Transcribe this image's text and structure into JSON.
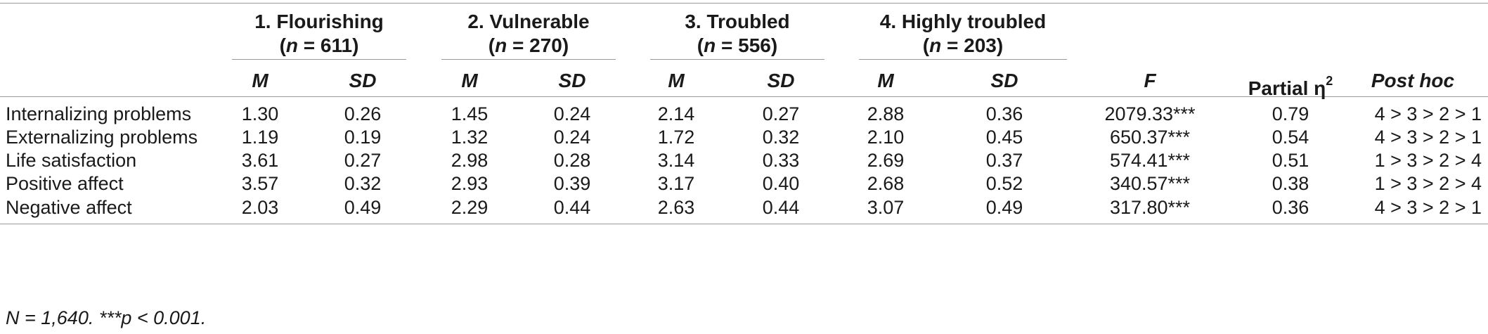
{
  "groups": [
    {
      "title": "1. Flourishing",
      "n_prefix": "(",
      "n_var": "n",
      "n_eq": " = 611)"
    },
    {
      "title": "2. Vulnerable",
      "n_prefix": "(",
      "n_var": "n",
      "n_eq": " = 270)"
    },
    {
      "title": "3. Troubled",
      "n_prefix": "(",
      "n_var": "n",
      "n_eq": " = 556)"
    },
    {
      "title": "4. Highly troubled",
      "n_prefix": "(",
      "n_var": "n",
      "n_eq": " = 203)"
    }
  ],
  "subheaders": {
    "m": "M",
    "sd": "SD",
    "f": "F",
    "eta_text": "Partial η",
    "eta_sup": "2",
    "posthoc": "Post hoc"
  },
  "rows": [
    {
      "label": "Internalizing problems",
      "m1": "1.30",
      "sd1": "0.26",
      "m2": "1.45",
      "sd2": "0.24",
      "m3": "2.14",
      "sd3": "0.27",
      "m4": "2.88",
      "sd4": "0.36",
      "f": "2079.33***",
      "eta": "0.79",
      "posthoc": "4 > 3 > 2 > 1"
    },
    {
      "label": "Externalizing problems",
      "m1": "1.19",
      "sd1": "0.19",
      "m2": "1.32",
      "sd2": "0.24",
      "m3": "1.72",
      "sd3": "0.32",
      "m4": "2.10",
      "sd4": "0.45",
      "f": "650.37***",
      "eta": "0.54",
      "posthoc": "4 > 3 > 2 > 1"
    },
    {
      "label": "Life satisfaction",
      "m1": "3.61",
      "sd1": "0.27",
      "m2": "2.98",
      "sd2": "0.28",
      "m3": "3.14",
      "sd3": "0.33",
      "m4": "2.69",
      "sd4": "0.37",
      "f": "574.41***",
      "eta": "0.51",
      "posthoc": "1 > 3 > 2 > 4"
    },
    {
      "label": "Positive affect",
      "m1": "3.57",
      "sd1": "0.32",
      "m2": "2.93",
      "sd2": "0.39",
      "m3": "3.17",
      "sd3": "0.40",
      "m4": "2.68",
      "sd4": "0.52",
      "f": "340.57***",
      "eta": "0.38",
      "posthoc": "1 > 3 > 2 > 4"
    },
    {
      "label": "Negative affect",
      "m1": "2.03",
      "sd1": "0.49",
      "m2": "2.29",
      "sd2": "0.44",
      "m3": "2.63",
      "sd3": "0.44",
      "m4": "3.07",
      "sd4": "0.49",
      "f": "317.80***",
      "eta": "0.36",
      "posthoc": "4 > 3 > 2 > 1"
    }
  ],
  "footnote": "N = 1,640. ***p < 0.001."
}
